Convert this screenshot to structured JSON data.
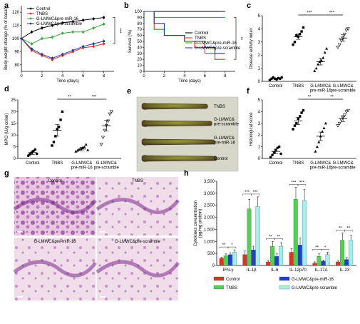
{
  "panels": {
    "a": {
      "letter": "a"
    },
    "b": {
      "letter": "b"
    },
    "c": {
      "letter": "c"
    },
    "d": {
      "letter": "d"
    },
    "e": {
      "letter": "e",
      "labels": [
        "TNBS",
        "G-LMWC&\npre-scramble",
        "G-LMWC&\npre-miR-16",
        "Control"
      ]
    },
    "f": {
      "letter": "f"
    },
    "g": {
      "letter": "g",
      "labels": [
        "Control",
        "TNBS",
        "G-LMWC&pre-miR-16",
        "G-LMWC&pre-scramble"
      ]
    },
    "h": {
      "letter": "h"
    }
  },
  "colors": {
    "control": "#000000",
    "tnbs": "#e53020",
    "mir16": "#3aa83a",
    "scramble": "#2236a8",
    "h_mir16": "#1f3fd0",
    "h_tnbs": "#4cd64c",
    "h_scramble": "#9ef2ee"
  },
  "chart_data": [
    {
      "id": "a",
      "type": "line",
      "xlabel": "Time (days)",
      "ylabel": "Body weight change (% of basal)",
      "xlim": [
        0,
        9
      ],
      "ylim": [
        75,
        125
      ],
      "xticks": [
        0,
        2,
        4,
        6,
        8
      ],
      "yticks": [
        80,
        90,
        100,
        110,
        120
      ],
      "legend": "top-left",
      "significance": "***",
      "x": [
        0,
        1,
        2,
        3,
        4,
        5,
        6,
        7,
        8
      ],
      "series": [
        {
          "name": "Control",
          "values": [
            100,
            105,
            108,
            110,
            112,
            113,
            114,
            115,
            116
          ]
        },
        {
          "name": "TNBS",
          "values": [
            100,
            91,
            87,
            84,
            87,
            90,
            93,
            94,
            96
          ]
        },
        {
          "name": "G-LMWC&pre-miR-16",
          "values": [
            100,
            96,
            100,
            101,
            104,
            105,
            105,
            108,
            111
          ]
        },
        {
          "name": "G-LMWC&pre-scramble",
          "values": [
            100,
            92,
            88,
            85,
            88,
            91,
            94,
            96,
            98
          ]
        }
      ]
    },
    {
      "id": "b",
      "type": "line",
      "xlabel": "Time (days)",
      "ylabel": "Survival (%)",
      "xlim": [
        0,
        9
      ],
      "ylim": [
        0,
        100
      ],
      "xticks": [
        0,
        2,
        4,
        6,
        8
      ],
      "yticks": [
        0,
        10,
        20,
        30,
        40,
        50,
        60,
        70,
        80,
        90,
        100
      ],
      "legend": "center-right",
      "significance": "**",
      "series": [
        {
          "name": "Control",
          "steps": [
            [
              0,
              100
            ],
            [
              8,
              100
            ]
          ]
        },
        {
          "name": "TNBS",
          "steps": [
            [
              0,
              100
            ],
            [
              1,
              70
            ],
            [
              2,
              60
            ],
            [
              4,
              50
            ],
            [
              5,
              40
            ],
            [
              6,
              30
            ],
            [
              7,
              20
            ],
            [
              8,
              20
            ]
          ]
        },
        {
          "name": "G-LMWC&pre-miR-16",
          "steps": [
            [
              0,
              100
            ],
            [
              1,
              90
            ],
            [
              8,
              90
            ]
          ]
        },
        {
          "name": "G-LMWC&pre-scramble",
          "steps": [
            [
              0,
              100
            ],
            [
              1,
              80
            ],
            [
              2,
              60
            ],
            [
              4,
              50
            ],
            [
              6,
              40
            ],
            [
              7,
              30
            ],
            [
              8,
              30
            ]
          ]
        }
      ]
    },
    {
      "id": "c",
      "type": "scatter",
      "ylabel": "Disease activity index",
      "ylim": [
        0,
        5
      ],
      "yticks": [
        0,
        1,
        2,
        3,
        4,
        5
      ],
      "categories": [
        "Control",
        "TNBS",
        "G-LMWC&\npre-miR-16",
        "G-LMWC&\npre-scramble"
      ],
      "means": [
        0.2,
        3.4,
        1.5,
        3.3
      ],
      "errors": [
        0.05,
        0.2,
        0.25,
        0.25
      ],
      "points": [
        [
          0.1,
          0.2,
          0.3,
          0.2,
          0.15,
          0.25,
          0.2,
          0.3
        ],
        [
          2.8,
          3.0,
          3.5,
          3.4,
          3.6,
          3.8,
          4.1
        ],
        [
          0.8,
          1.0,
          1.3,
          1.5,
          1.6,
          1.8,
          2.2,
          2.5
        ],
        [
          2.6,
          2.8,
          3.1,
          3.3,
          3.6,
          3.9,
          4.0
        ]
      ],
      "significance": [
        {
          "from": 1,
          "to": 2,
          "label": "***"
        },
        {
          "from": 2,
          "to": 3,
          "label": "***"
        }
      ]
    },
    {
      "id": "d",
      "type": "scatter",
      "ylabel": "MPO (U/g colon)",
      "ylim": [
        0,
        25
      ],
      "yticks": [
        0,
        5,
        10,
        15,
        20,
        25
      ],
      "categories": [
        "Control",
        "TNBS",
        "G-LMWC&\npre-miR-16",
        "G-LMWC&\npre-scramble"
      ],
      "means": [
        2.5,
        12,
        4,
        14
      ],
      "errors": [
        0.8,
        2.5,
        0.7,
        2.3
      ],
      "points": [
        [
          1.2,
          1.8,
          2.5,
          3.2,
          3.8,
          2.0
        ],
        [
          5.5,
          7.0,
          9.5,
          12.5,
          13.5,
          16.5,
          20.0
        ],
        [
          3.0,
          3.4,
          3.8,
          4.2,
          4.6,
          5.0,
          6.0,
          3.6
        ],
        [
          6.0,
          9.0,
          12.0,
          14.0,
          16.0,
          19.0,
          20.0
        ]
      ],
      "significance": [
        {
          "from": 1,
          "to": 2,
          "label": "**"
        },
        {
          "from": 2,
          "to": 3,
          "label": "***"
        }
      ]
    },
    {
      "id": "f",
      "type": "scatter",
      "ylabel": "Histological score",
      "ylim": [
        0,
        5
      ],
      "yticks": [
        0,
        1,
        2,
        3,
        4,
        5
      ],
      "categories": [
        "Control",
        "TNBS",
        "G-LMWC&\npre-miR-16",
        "G-LMWC&\npre-scramble"
      ],
      "means": [
        0.6,
        3.2,
        1.9,
        3.4
      ],
      "errors": [
        0.2,
        0.3,
        0.35,
        0.25
      ],
      "points": [
        [
          0.1,
          0.3,
          0.5,
          0.7,
          0.9,
          1.0,
          0.4
        ],
        [
          2.5,
          2.8,
          3.0,
          3.4,
          3.6,
          3.9,
          4.1
        ],
        [
          0.6,
          1.0,
          1.4,
          1.9,
          2.3,
          2.6,
          3.0
        ],
        [
          2.8,
          3.0,
          3.3,
          3.5,
          3.7,
          4.0,
          4.1
        ]
      ],
      "significance": [
        {
          "from": 1,
          "to": 2,
          "label": "**"
        },
        {
          "from": 2,
          "to": 3,
          "label": "**"
        }
      ]
    },
    {
      "id": "h",
      "type": "bar",
      "ylabel": "Cytokines concentration\n(pg/mg protein)",
      "ylim": [
        0,
        3500
      ],
      "yticks": [
        0,
        500,
        1000,
        1500,
        2000,
        2500,
        3000,
        3500
      ],
      "ytick_labels": [
        "0",
        "500",
        "1,000",
        "1,500",
        "2,000",
        "2,500",
        "3,000",
        "3,500"
      ],
      "categories": [
        "IFN-γ",
        "IL-1β",
        "IL-6",
        "IL-12p70",
        "IL-17A",
        "IL-23"
      ],
      "legend": "bottom",
      "series": [
        {
          "name": "Control",
          "values": [
            300,
            450,
            150,
            550,
            100,
            150
          ],
          "errors": [
            50,
            150,
            50,
            150,
            50,
            50
          ]
        },
        {
          "name": "TNBS",
          "values": [
            400,
            2350,
            800,
            2750,
            380,
            1050
          ],
          "errors": [
            80,
            400,
            200,
            500,
            100,
            300
          ]
        },
        {
          "name": "G-LMWC&pre-miR-16",
          "values": [
            450,
            650,
            380,
            850,
            180,
            250
          ],
          "errors": [
            80,
            150,
            100,
            300,
            50,
            80
          ]
        },
        {
          "name": "G-LMWC&pre-scramble",
          "values": [
            550,
            2450,
            800,
            2700,
            450,
            1050
          ],
          "errors": [
            100,
            400,
            150,
            450,
            100,
            200
          ]
        }
      ],
      "significance_labels": [
        "**",
        "*",
        "***",
        "***",
        "**",
        "**",
        "***",
        "***",
        "**",
        "*",
        "**",
        "**"
      ]
    }
  ]
}
